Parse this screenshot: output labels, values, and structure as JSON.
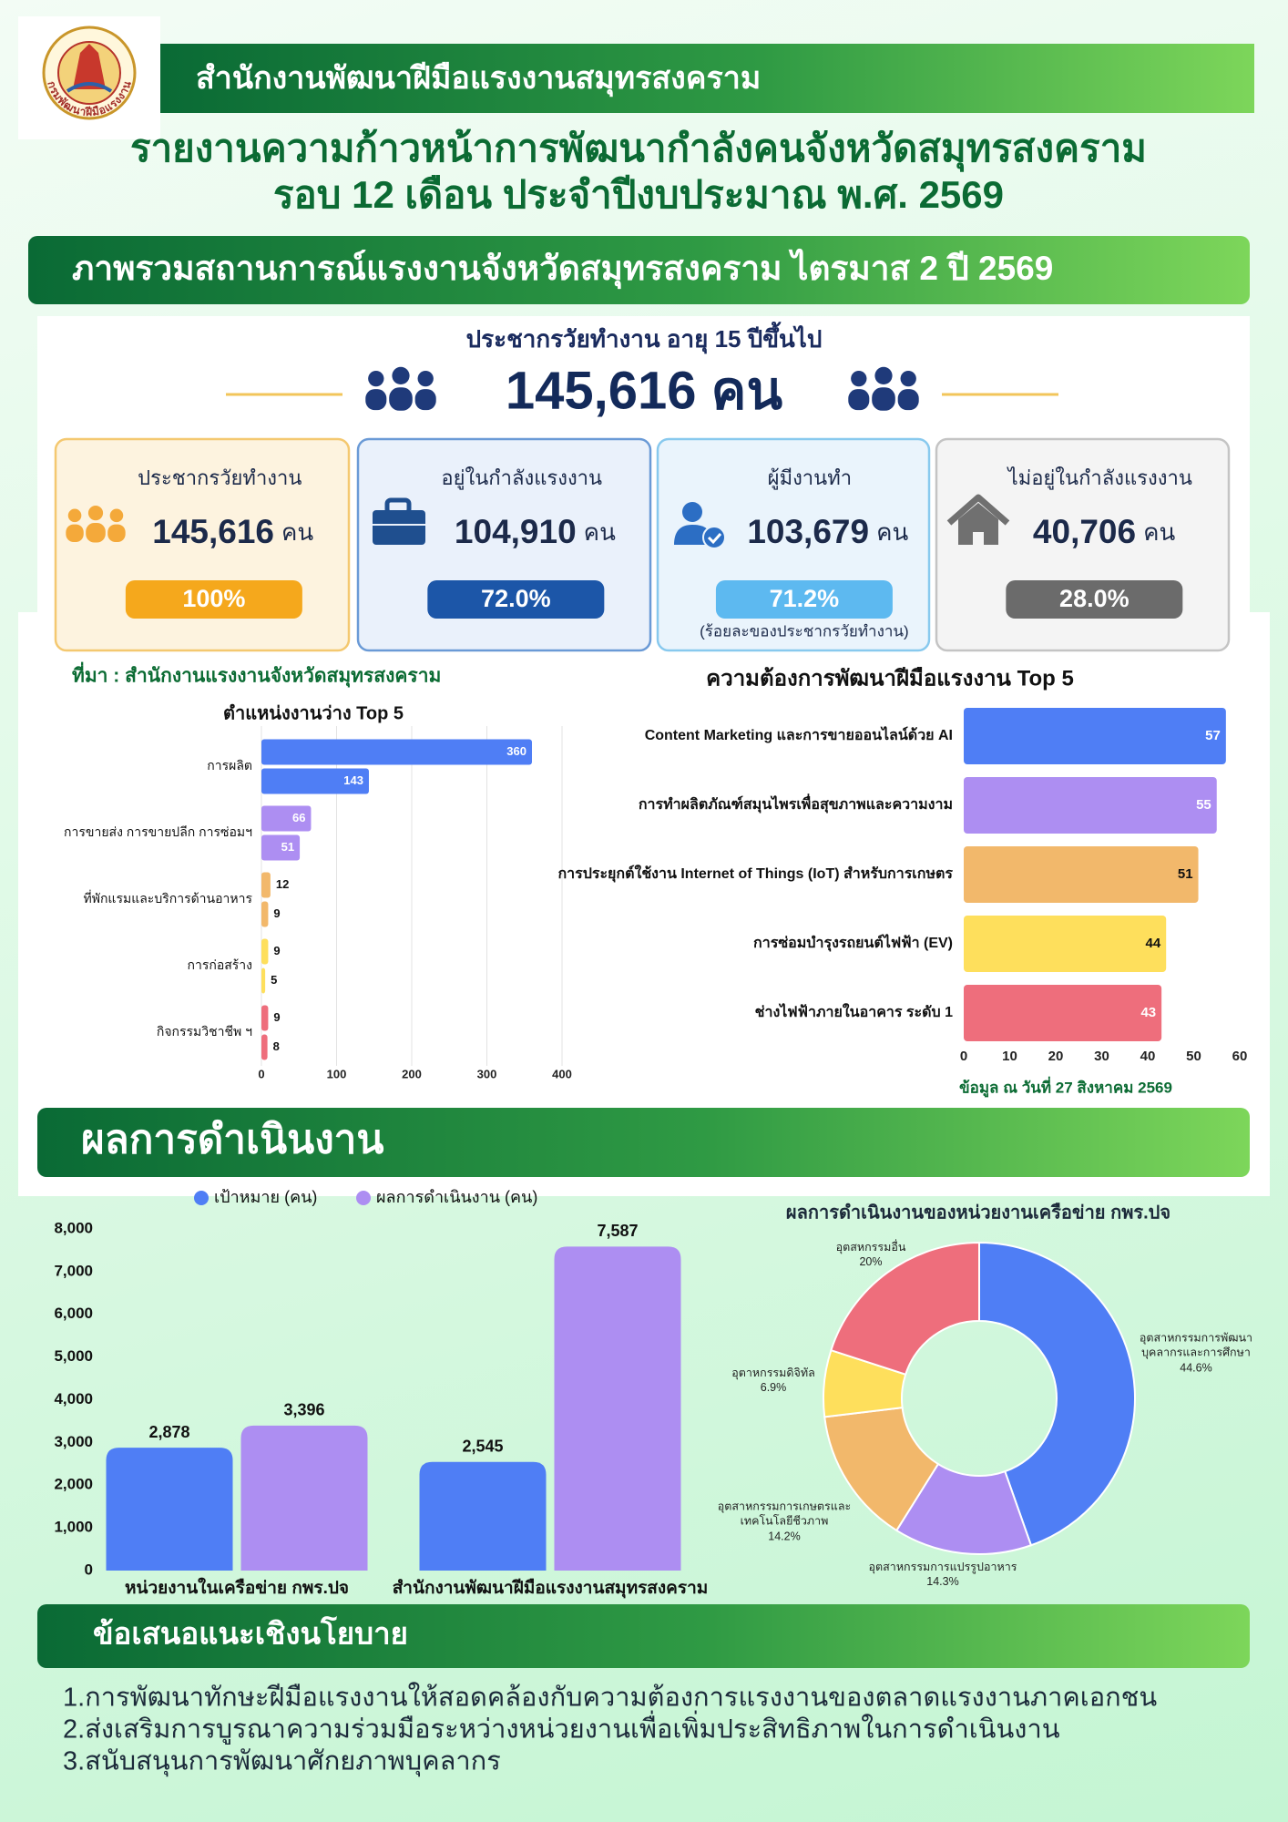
{
  "logo_text": "กรมพัฒนาฝีมือแรงงาน",
  "header": {
    "office": "สำนักงานพัฒนาฝีมือแรงงานสมุทรสงคราม",
    "title_lines": [
      "รายงานความก้าวหน้าการพัฒนากำลังคนจังหวัดสมุทรสงคราม",
      "รอบ 12 เดือน ประจำปีงบประมาณ พ.ศ. 2569"
    ]
  },
  "overview": {
    "heading": "ภาพรวมสถานการณ์แรงงานจังหวัดสมุทรสงคราม ไตรมาส 2 ปี 2569",
    "subtitle": "ประชากรวัยทำงาน อายุ 15 ปีขึ้นไป",
    "total": "145,616 คน",
    "cards": [
      {
        "title": "ประชากรวัยทำงาน",
        "value": "145,616",
        "unit": "คน",
        "percent": "100%",
        "color": "#f5a81c",
        "background": "#fdf3df",
        "border": "#f4c870"
      },
      {
        "title": "อยู่ในกำลังแรงงาน",
        "value": "104,910",
        "unit": "คน",
        "percent": "72.0%",
        "color": "#1c56a8",
        "background": "#eaf1fb",
        "border": "#6a9ad6"
      },
      {
        "title": "ผู้มีงานทำ",
        "value": "103,679",
        "unit": "คน",
        "percent": "71.2%",
        "note": "(ร้อยละของประชากรวัยทำงาน)",
        "color": "#5db9f0",
        "background": "#eaf4fc",
        "border": "#88c9ee"
      },
      {
        "title": "ไม่อยู่ในกำลังแรงงาน",
        "value": "40,706",
        "unit": "คน",
        "percent": "28.0%",
        "color": "#6b6b6b",
        "background": "#f4f4f4",
        "border": "#c4c4c4"
      }
    ],
    "source": "ที่มา : สำนักงานแรงงานจังหวัดสมุทรสงคราม"
  },
  "performance_heading": "ผลการดำเนินงาน",
  "policy": {
    "heading": "ข้อเสนอแนะเชิงนโยบาย",
    "items": [
      "1.การพัฒนาทักษะฝีมือแรงงานให้สอดคล้องกับความต้องการแรงงานของตลาดแรงงานภาคเอกชน",
      "2.ส่งเสริมการบูรณาความร่วมมือระหว่างหน่วยงานเพื่อเพิ่มประสิทธิภาพในการดำเนินงาน",
      "3.สนับสนุนการพัฒนาศักยภาพบุคลากร"
    ]
  },
  "chart_data": [
    {
      "type": "bar",
      "horizontal": true,
      "title": "ตำแหน่งงานว่าง Top 5",
      "categories": [
        "การผลิต",
        "การขายส่ง การขายปลีก การซ่อมฯ",
        "ที่พักแรมและบริการด้านอาหาร",
        "การก่อสร้าง",
        "กิจกรรมวิชาชีพ ฯ"
      ],
      "colors": [
        "#4f7ef5",
        "#ad8ef2",
        "#f2b86b",
        "#fedf5c",
        "#ee6e7c"
      ],
      "series": [
        {
          "values": [
            360,
            66,
            12,
            9,
            9
          ]
        },
        {
          "values": [
            143,
            51,
            9,
            5,
            8
          ]
        }
      ],
      "xlim": [
        0,
        400
      ],
      "xticks": [
        0,
        100,
        200,
        300,
        400
      ],
      "grid": true
    },
    {
      "type": "bar",
      "horizontal": true,
      "title": "ความต้องการพัฒนาฝีมือแรงงาน Top 5",
      "categories": [
        "Content Marketing และการขายออนไลน์ด้วย AI",
        "การทำผลิตภัณฑ์สมุนไพรเพื่อสุขภาพและความงาม",
        "การประยุกต์ใช้งาน Internet of Things (IoT) สำหรับการเกษตร",
        "การซ่อมบำรุงรถยนต์ไฟฟ้า (EV)",
        "ช่างไฟฟ้าภายในอาคาร ระดับ 1"
      ],
      "values": [
        57,
        55,
        51,
        44,
        43
      ],
      "colors": [
        "#4f7ef5",
        "#ad8ef2",
        "#f2b86b",
        "#fedf5c",
        "#ee6e7c"
      ],
      "xlim": [
        0,
        60
      ],
      "xticks": [
        0,
        10,
        20,
        30,
        40,
        50,
        60
      ],
      "grid": false,
      "note": "ข้อมูล ณ วันที่ 27 สิงหาคม 2569"
    },
    {
      "type": "bar",
      "categories": [
        "หน่วยงานในเครือข่าย กพร.ปจ",
        "สำนักงานพัฒนาฝีมือแรงงานสมุทรสงคราม"
      ],
      "series": [
        {
          "name": "เป้าหมาย (คน)",
          "color": "#4f7ef5",
          "values": [
            2878,
            2545
          ],
          "value_labels": [
            "2,878",
            "2,545"
          ]
        },
        {
          "name": "ผลการดำเนินงาน (คน)",
          "color": "#ad8ef2",
          "values": [
            3396,
            7587
          ],
          "value_labels": [
            "3,396",
            "7,587"
          ]
        }
      ],
      "ylim": [
        0,
        8000
      ],
      "yticks": [
        0,
        {
          "value": 1000,
          "label": "1,000"
        },
        {
          "value": 2000,
          "label": "2,000"
        },
        {
          "value": 3000,
          "label": "3,000"
        },
        {
          "value": 4000,
          "label": "4,000"
        },
        {
          "value": 5000,
          "label": "5,000"
        },
        {
          "value": 6000,
          "label": "6,000"
        },
        {
          "value": 7000,
          "label": "7,000"
        },
        {
          "value": 8000,
          "label": "8,000"
        }
      ],
      "grid": false,
      "legend": "top"
    },
    {
      "type": "donut",
      "title": "ผลการดำเนินงานของหน่วยงานเครือข่าย กพร.ปจ",
      "categories": [
        "อุตสาหกรรมการพัฒนาบุคลากรและการศึกษา",
        "อุตสาหกรรมการแปรรูปอาหาร",
        "อุตสาหกรรมการเกษตรและเทคโนโลยีชีวภาพ",
        "อุตาหกรรมดิจิทัล",
        "อุตสหกรรมอื่น"
      ],
      "values": [
        44.6,
        14.3,
        14.2,
        6.9,
        20
      ],
      "value_labels": [
        "44.6%",
        "14.3%",
        "14.2%",
        "6.9%",
        "20%"
      ],
      "colors": [
        "#4f7ef5",
        "#ad8ef2",
        "#f2b86b",
        "#fedf5c",
        "#ee6e7c"
      ]
    }
  ]
}
